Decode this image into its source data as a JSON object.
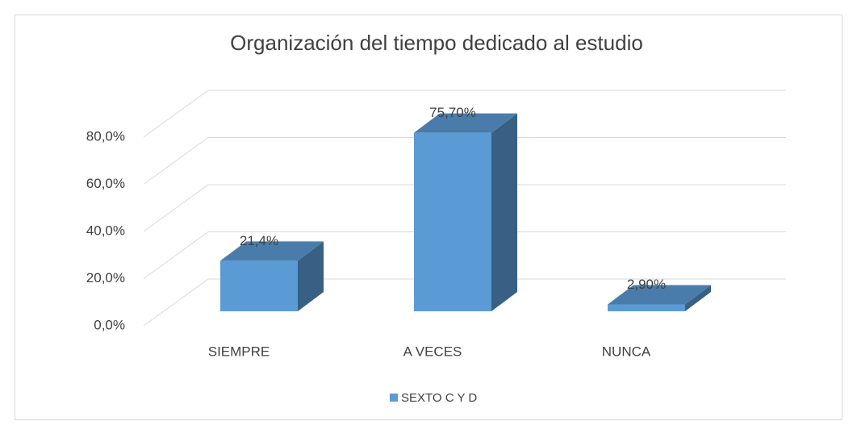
{
  "chart_data": {
    "type": "bar3d",
    "title": "Organización del tiempo dedicado al estudio",
    "categories": [
      "SIEMPRE",
      "A VECES",
      "NUNCA"
    ],
    "series": [
      {
        "name": "SEXTO C Y D",
        "color": "#5b9bd5",
        "values": [
          21.4,
          75.7,
          2.9
        ],
        "value_labels": [
          "21,4%",
          "75,70%",
          "2,90%"
        ]
      }
    ],
    "ylim": [
      0,
      80
    ],
    "yticks": [
      {
        "value": 0,
        "label": "0,0%"
      },
      {
        "value": 20,
        "label": "20,0%"
      },
      {
        "value": 40,
        "label": "40,0%"
      },
      {
        "value": 60,
        "label": "60,0%"
      },
      {
        "value": 80,
        "label": "80,0%"
      }
    ],
    "grid": true,
    "legend": "bottom"
  }
}
